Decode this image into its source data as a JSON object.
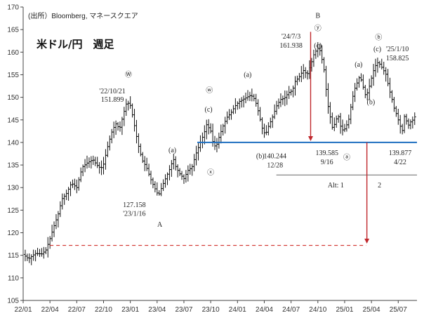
{
  "source": "(出所）Bloomberg, マネースクエア",
  "title": "米ドル/円　週足",
  "chart_data": {
    "type": "candlestick",
    "y_ticks": [
      105,
      110,
      115,
      120,
      125,
      130,
      135,
      140,
      145,
      150,
      155,
      160,
      165,
      170
    ],
    "ylim": [
      105,
      170
    ],
    "x_ticks": [
      "22/01",
      "22/04",
      "22/07",
      "22/10",
      "23/01",
      "23/04",
      "23/07",
      "23/10",
      "24/01",
      "24/04",
      "24/07",
      "24/10",
      "25/01",
      "25/04",
      "25/07"
    ],
    "xlim": [
      0,
      14.7
    ],
    "grid": false,
    "path": [
      [
        0,
        115.2
      ],
      [
        0.2,
        114.2
      ],
      [
        0.45,
        115.4
      ],
      [
        0.7,
        115.3
      ],
      [
        0.85,
        116.2
      ],
      [
        1.0,
        118.7
      ],
      [
        1.15,
        121.5
      ],
      [
        1.3,
        124.0
      ],
      [
        1.45,
        127.5
      ],
      [
        1.6,
        128.5
      ],
      [
        1.8,
        131.0
      ],
      [
        2.0,
        130.0
      ],
      [
        2.2,
        134.5
      ],
      [
        2.4,
        135.5
      ],
      [
        2.6,
        136.2
      ],
      [
        2.75,
        135.0
      ],
      [
        2.9,
        134.2
      ],
      [
        3.0,
        135.2
      ],
      [
        3.15,
        139.0
      ],
      [
        3.3,
        142.2
      ],
      [
        3.45,
        144.2
      ],
      [
        3.6,
        143.0
      ],
      [
        3.75,
        146.5
      ],
      [
        3.87,
        149.0
      ],
      [
        4.0,
        148.2
      ],
      [
        4.1,
        145.5
      ],
      [
        4.2,
        142.2
      ],
      [
        4.33,
        138.5
      ],
      [
        4.45,
        136.0
      ],
      [
        4.6,
        134.5
      ],
      [
        4.75,
        132.0
      ],
      [
        4.9,
        130.0
      ],
      [
        5.05,
        128.2
      ],
      [
        5.2,
        130.5
      ],
      [
        5.35,
        132.5
      ],
      [
        5.5,
        134.5
      ],
      [
        5.6,
        136.5
      ],
      [
        5.7,
        134.5
      ],
      [
        5.85,
        133.0
      ],
      [
        6.0,
        132.0
      ],
      [
        6.15,
        133.8
      ],
      [
        6.3,
        134.5
      ],
      [
        6.45,
        137.5
      ],
      [
        6.6,
        139.8
      ],
      [
        6.75,
        142.0
      ],
      [
        6.85,
        144.0
      ],
      [
        7.0,
        142.5
      ],
      [
        7.1,
        139.5
      ],
      [
        7.2,
        139.0
      ],
      [
        7.3,
        141.0
      ],
      [
        7.45,
        143.5
      ],
      [
        7.6,
        145.5
      ],
      [
        7.75,
        146.5
      ],
      [
        7.9,
        148.0
      ],
      [
        8.05,
        149.0
      ],
      [
        8.2,
        149.5
      ],
      [
        8.35,
        150.0
      ],
      [
        8.5,
        150.5
      ],
      [
        8.65,
        149.5
      ],
      [
        8.75,
        147.5
      ],
      [
        8.85,
        145.0
      ],
      [
        8.95,
        142.5
      ],
      [
        9.05,
        141.8
      ],
      [
        9.15,
        143.5
      ],
      [
        9.3,
        145.5
      ],
      [
        9.45,
        148.0
      ],
      [
        9.6,
        149.5
      ],
      [
        9.75,
        149.8
      ],
      [
        9.9,
        151.0
      ],
      [
        10.05,
        151.5
      ],
      [
        10.15,
        153.5
      ],
      [
        10.3,
        154.5
      ],
      [
        10.45,
        156.0
      ],
      [
        10.6,
        155.0
      ],
      [
        10.75,
        157.5
      ],
      [
        10.85,
        159.5
      ],
      [
        10.95,
        160.5
      ],
      [
        11.05,
        161.0
      ],
      [
        11.15,
        158.5
      ],
      [
        11.25,
        155.5
      ],
      [
        11.35,
        149.0
      ],
      [
        11.45,
        146.0
      ],
      [
        11.55,
        143.0
      ],
      [
        11.65,
        144.5
      ],
      [
        11.75,
        146.2
      ],
      [
        11.85,
        143.5
      ],
      [
        11.95,
        142.5
      ],
      [
        12.05,
        143.5
      ],
      [
        12.15,
        145.0
      ],
      [
        12.25,
        148.5
      ],
      [
        12.35,
        151.5
      ],
      [
        12.45,
        153.0
      ],
      [
        12.55,
        154.5
      ],
      [
        12.65,
        153.5
      ],
      [
        12.75,
        150.5
      ],
      [
        12.85,
        151.0
      ],
      [
        12.95,
        153.0
      ],
      [
        13.05,
        155.5
      ],
      [
        13.15,
        157.0
      ],
      [
        13.25,
        157.8
      ],
      [
        13.35,
        157.0
      ],
      [
        13.45,
        156.0
      ],
      [
        13.55,
        155.0
      ],
      [
        13.65,
        152.0
      ],
      [
        13.75,
        150.0
      ],
      [
        13.85,
        147.5
      ],
      [
        13.95,
        146.0
      ],
      [
        14.05,
        144.0
      ],
      [
        14.15,
        142.5
      ],
      [
        14.25,
        146.5
      ],
      [
        14.35,
        143.5
      ],
      [
        14.45,
        144.5
      ],
      [
        14.55,
        145.0
      ],
      [
        14.65,
        146.0
      ]
    ],
    "horizontal_lines": [
      {
        "y": 140,
        "color": "#1f6fc0",
        "style": "solid",
        "x_from": 6.5
      },
      {
        "y": 117.2,
        "color": "#d0312d",
        "style": "dashed",
        "x_from": 1.0,
        "x_to": 12.8
      },
      {
        "y": 132.8,
        "color": "#666666",
        "style": "solid",
        "x_from": 9.45
      }
    ],
    "arrows": [
      {
        "x": 10.73,
        "y_from": 164.5,
        "y_to": 140.3,
        "color": "#c0282d"
      },
      {
        "x": 12.83,
        "y_from": 140,
        "y_to": 117.6,
        "color": "#c0282d"
      }
    ],
    "annotations": [
      {
        "text": "Ⓦ",
        "x": 3.93,
        "y": 154.5,
        "color": "#222222"
      },
      {
        "text": "'22/10/21",
        "x": 3.33,
        "y": 150.9,
        "color": "#222222"
      },
      {
        "text": "151.899",
        "x": 3.33,
        "y": 149.0,
        "color": "#222222"
      },
      {
        "text": "(a)",
        "x": 5.57,
        "y": 137.8,
        "color": "#222222"
      },
      {
        "text": "127.158",
        "x": 4.15,
        "y": 125.7,
        "color": "#222222"
      },
      {
        "text": "'23/1/16",
        "x": 4.15,
        "y": 123.7,
        "color": "#222222"
      },
      {
        "text": "A",
        "x": 5.1,
        "y": 121.3,
        "color": "#222222"
      },
      {
        "text": "ⓦ",
        "x": 6.95,
        "y": 151.0,
        "color": "#222222"
      },
      {
        "text": "(c)",
        "x": 6.92,
        "y": 146.8,
        "color": "#222222"
      },
      {
        "text": "ⓧ",
        "x": 7.0,
        "y": 132.8,
        "color": "#222222"
      },
      {
        "text": "(a)",
        "x": 8.38,
        "y": 154.5,
        "color": "#222222"
      },
      {
        "text": "(b)",
        "x": 8.85,
        "y": 136.5,
        "color": "#222222"
      },
      {
        "text": "140.244",
        "x": 9.4,
        "y": 136.5,
        "color": "#222222"
      },
      {
        "text": "12/28",
        "x": 9.4,
        "y": 134.5,
        "color": "#222222"
      },
      {
        "text": "B",
        "x": 11.0,
        "y": 167.6,
        "color": "#222222"
      },
      {
        "text": "ⓨ",
        "x": 11.0,
        "y": 164.8,
        "color": "#222222"
      },
      {
        "text": "'24/7/3",
        "x": 10.0,
        "y": 163.0,
        "color": "#222222"
      },
      {
        "text": "161.938",
        "x": 10.0,
        "y": 161.0,
        "color": "#222222"
      },
      {
        "text": "(c)",
        "x": 11.0,
        "y": 161.0,
        "color": "#222222"
      },
      {
        "text": "139.585",
        "x": 11.34,
        "y": 137.2,
        "color": "#d0312d"
      },
      {
        "text": "9/16",
        "x": 11.34,
        "y": 135.2,
        "color": "#d0312d"
      },
      {
        "text": "ⓐ",
        "x": 12.08,
        "y": 136.2,
        "color": "#222222"
      },
      {
        "text": "(a)",
        "x": 12.52,
        "y": 156.8,
        "color": "#222222"
      },
      {
        "text": "(b)",
        "x": 12.98,
        "y": 148.5,
        "color": "#222222"
      },
      {
        "text": "ⓑ",
        "x": 13.27,
        "y": 162.8,
        "color": "#222222"
      },
      {
        "text": "(c)",
        "x": 13.22,
        "y": 160.2,
        "color": "#222222"
      },
      {
        "text": "'25/1/10",
        "x": 13.97,
        "y": 160.2,
        "color": "#222222"
      },
      {
        "text": "158.825",
        "x": 13.97,
        "y": 158.2,
        "color": "#222222"
      },
      {
        "text": "139.877",
        "x": 14.07,
        "y": 137.2,
        "color": "#1f6fc0"
      },
      {
        "text": "4/22",
        "x": 14.07,
        "y": 135.2,
        "color": "#1f6fc0"
      },
      {
        "text": "Alt: 1",
        "x": 11.67,
        "y": 130.0,
        "color": "#222222"
      },
      {
        "text": "2",
        "x": 13.3,
        "y": 130.0,
        "color": "#222222"
      }
    ]
  }
}
